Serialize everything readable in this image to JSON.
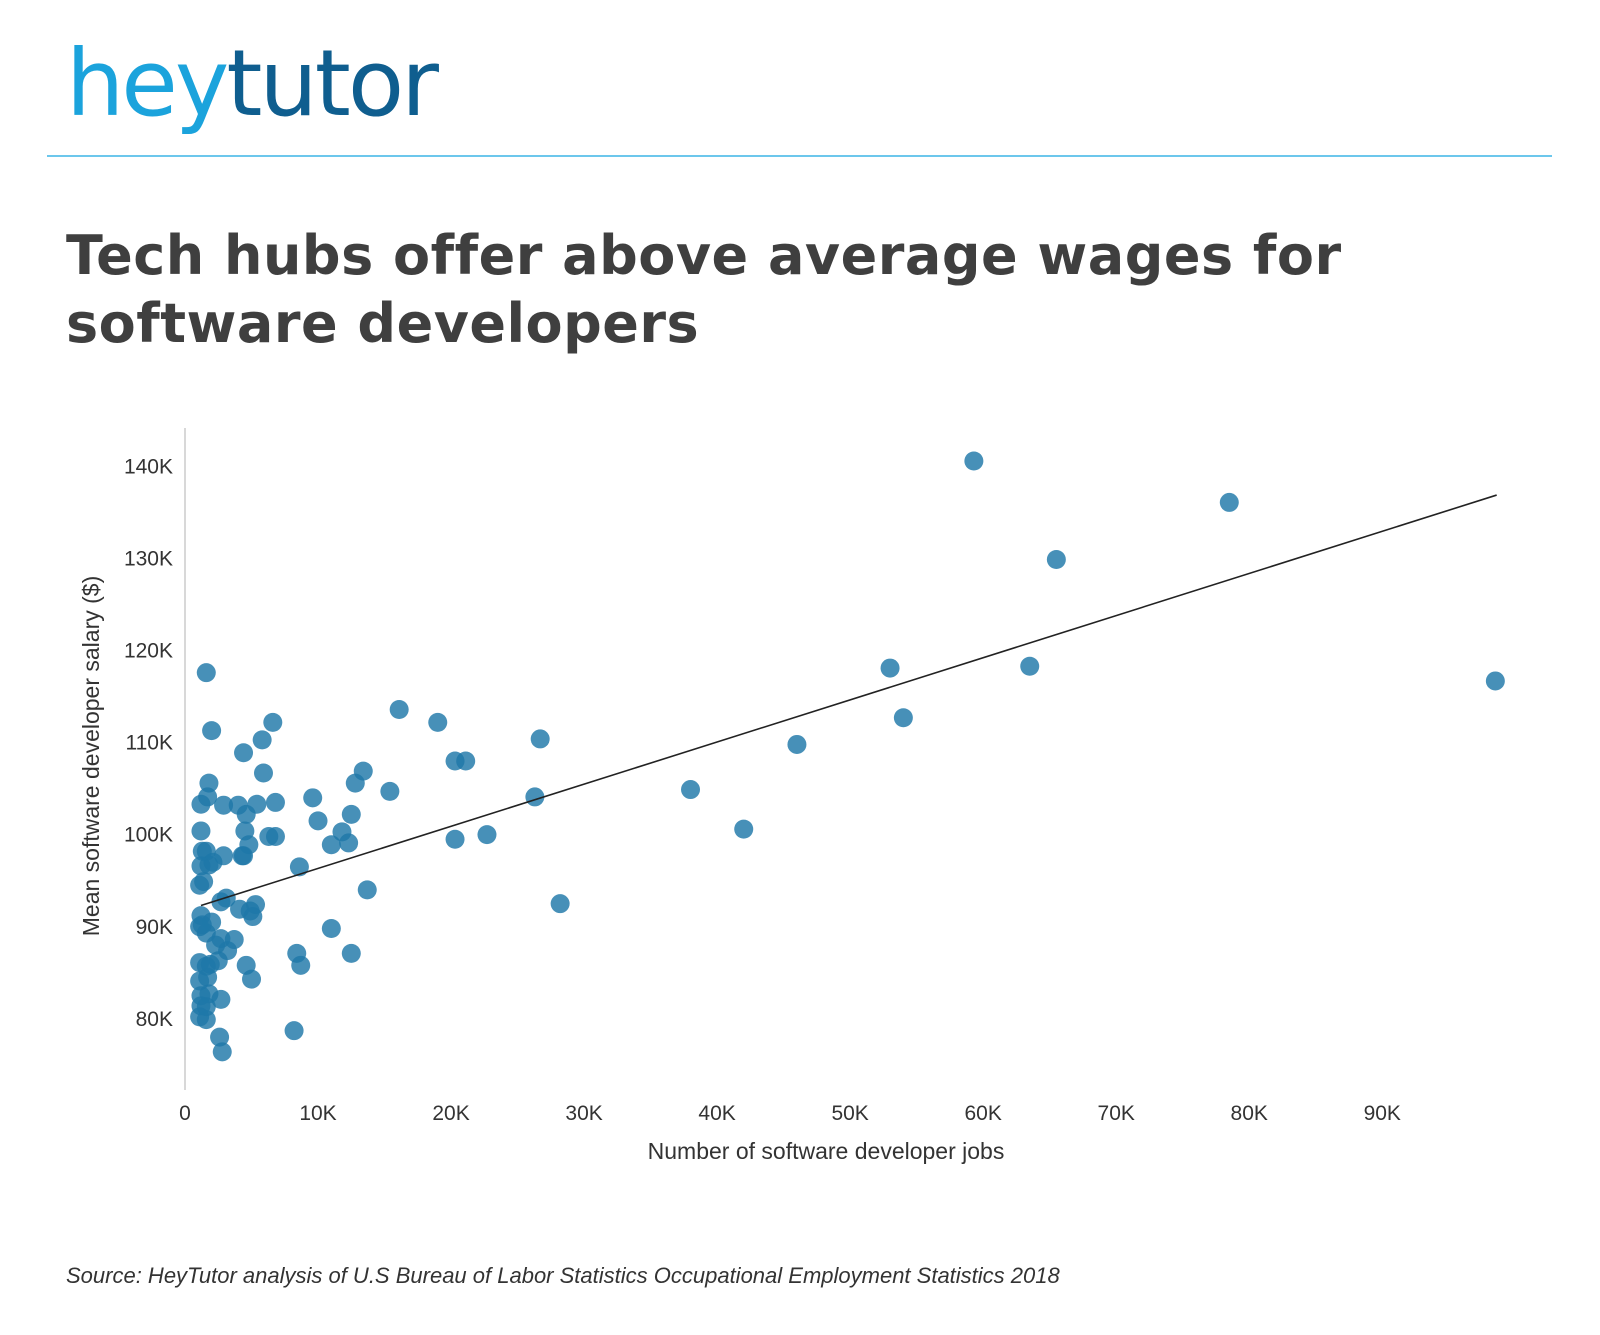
{
  "logo": {
    "part1": "hey",
    "part2": "tutor"
  },
  "title": "Tech hubs offer above average wages for software developers",
  "source": "Source: HeyTutor analysis of  U.S Bureau of Labor Statistics Occupational Employment Statistics 2018",
  "colors": {
    "logo_light": "#1ba3dc",
    "logo_dark": "#0f5e8f",
    "rule": "#6cc7ec",
    "point": "#1f78a8",
    "trendline": "#222222",
    "axis": "#d8d8d8",
    "text": "#333333"
  },
  "chart_data": {
    "type": "scatter",
    "title": "Tech hubs offer above average wages for software developers",
    "xlabel": "Number of software developer jobs",
    "ylabel": "Mean software developer salary ($)",
    "xlim": [
      0,
      99000
    ],
    "ylim": [
      74000,
      143000
    ],
    "xticks": [
      0,
      10000,
      20000,
      30000,
      40000,
      50000,
      60000,
      70000,
      80000,
      90000
    ],
    "xtick_labels": [
      "0",
      "10K",
      "20K",
      "30K",
      "40K",
      "50K",
      "60K",
      "70K",
      "80K",
      "90K"
    ],
    "yticks": [
      80000,
      90000,
      100000,
      110000,
      120000,
      130000,
      140000
    ],
    "ytick_labels": [
      "80K",
      "90K",
      "100K",
      "110K",
      "120K",
      "130K",
      "140K"
    ],
    "grid": false,
    "legend": "none",
    "trendline": {
      "x": [
        1200,
        98600
      ],
      "y": [
        92200,
        136800
      ]
    },
    "points": [
      [
        59300,
        140500
      ],
      [
        78500,
        136000
      ],
      [
        65500,
        129800
      ],
      [
        53000,
        118000
      ],
      [
        63500,
        118200
      ],
      [
        98500,
        116600
      ],
      [
        54000,
        112600
      ],
      [
        46000,
        109700
      ],
      [
        38000,
        104800
      ],
      [
        42000,
        100500
      ],
      [
        28200,
        92400
      ],
      [
        26700,
        110300
      ],
      [
        26300,
        104000
      ],
      [
        22700,
        99900
      ],
      [
        20300,
        99400
      ],
      [
        20300,
        107900
      ],
      [
        21100,
        107900
      ],
      [
        19000,
        112100
      ],
      [
        16100,
        113500
      ],
      [
        15400,
        104600
      ],
      [
        13400,
        106800
      ],
      [
        12800,
        105500
      ],
      [
        13700,
        93900
      ],
      [
        12500,
        102100
      ],
      [
        12300,
        99000
      ],
      [
        11800,
        100200
      ],
      [
        11000,
        98800
      ],
      [
        11000,
        89700
      ],
      [
        12500,
        87000
      ],
      [
        10000,
        101400
      ],
      [
        9600,
        103900
      ],
      [
        8600,
        96400
      ],
      [
        8400,
        87000
      ],
      [
        8700,
        85700
      ],
      [
        8200,
        78600
      ],
      [
        6800,
        103400
      ],
      [
        6600,
        112100
      ],
      [
        6800,
        99700
      ],
      [
        6300,
        99700
      ],
      [
        5900,
        106600
      ],
      [
        5800,
        110200
      ],
      [
        5400,
        103200
      ],
      [
        5300,
        92300
      ],
      [
        5100,
        91000
      ],
      [
        4900,
        91600
      ],
      [
        5000,
        84200
      ],
      [
        4800,
        98800
      ],
      [
        4600,
        102100
      ],
      [
        4500,
        100300
      ],
      [
        4400,
        97600
      ],
      [
        4400,
        108800
      ],
      [
        4300,
        97600
      ],
      [
        4000,
        103100
      ],
      [
        4100,
        91800
      ],
      [
        4600,
        85700
      ],
      [
        3700,
        88500
      ],
      [
        3200,
        87300
      ],
      [
        3100,
        93000
      ],
      [
        2900,
        103100
      ],
      [
        2900,
        97600
      ],
      [
        2700,
        92600
      ],
      [
        2700,
        88600
      ],
      [
        2500,
        86200
      ],
      [
        2300,
        87900
      ],
      [
        2700,
        82000
      ],
      [
        2600,
        77900
      ],
      [
        2800,
        76300
      ],
      [
        2100,
        96900
      ],
      [
        2000,
        111200
      ],
      [
        2000,
        90400
      ],
      [
        1900,
        85800
      ],
      [
        1800,
        105500
      ],
      [
        1800,
        96600
      ],
      [
        1700,
        104000
      ],
      [
        1600,
        117500
      ],
      [
        1600,
        98100
      ],
      [
        1600,
        89200
      ],
      [
        1600,
        85600
      ],
      [
        1700,
        84400
      ],
      [
        1800,
        82600
      ],
      [
        1600,
        81200
      ],
      [
        1600,
        79800
      ],
      [
        1400,
        94800
      ],
      [
        1300,
        98100
      ],
      [
        1300,
        90100
      ],
      [
        1200,
        103200
      ],
      [
        1200,
        100300
      ],
      [
        1200,
        96500
      ],
      [
        1200,
        91100
      ],
      [
        1100,
        94400
      ],
      [
        1100,
        89900
      ],
      [
        1100,
        86000
      ],
      [
        1100,
        84000
      ],
      [
        1200,
        82400
      ],
      [
        1200,
        81300
      ],
      [
        1100,
        80100
      ]
    ]
  }
}
